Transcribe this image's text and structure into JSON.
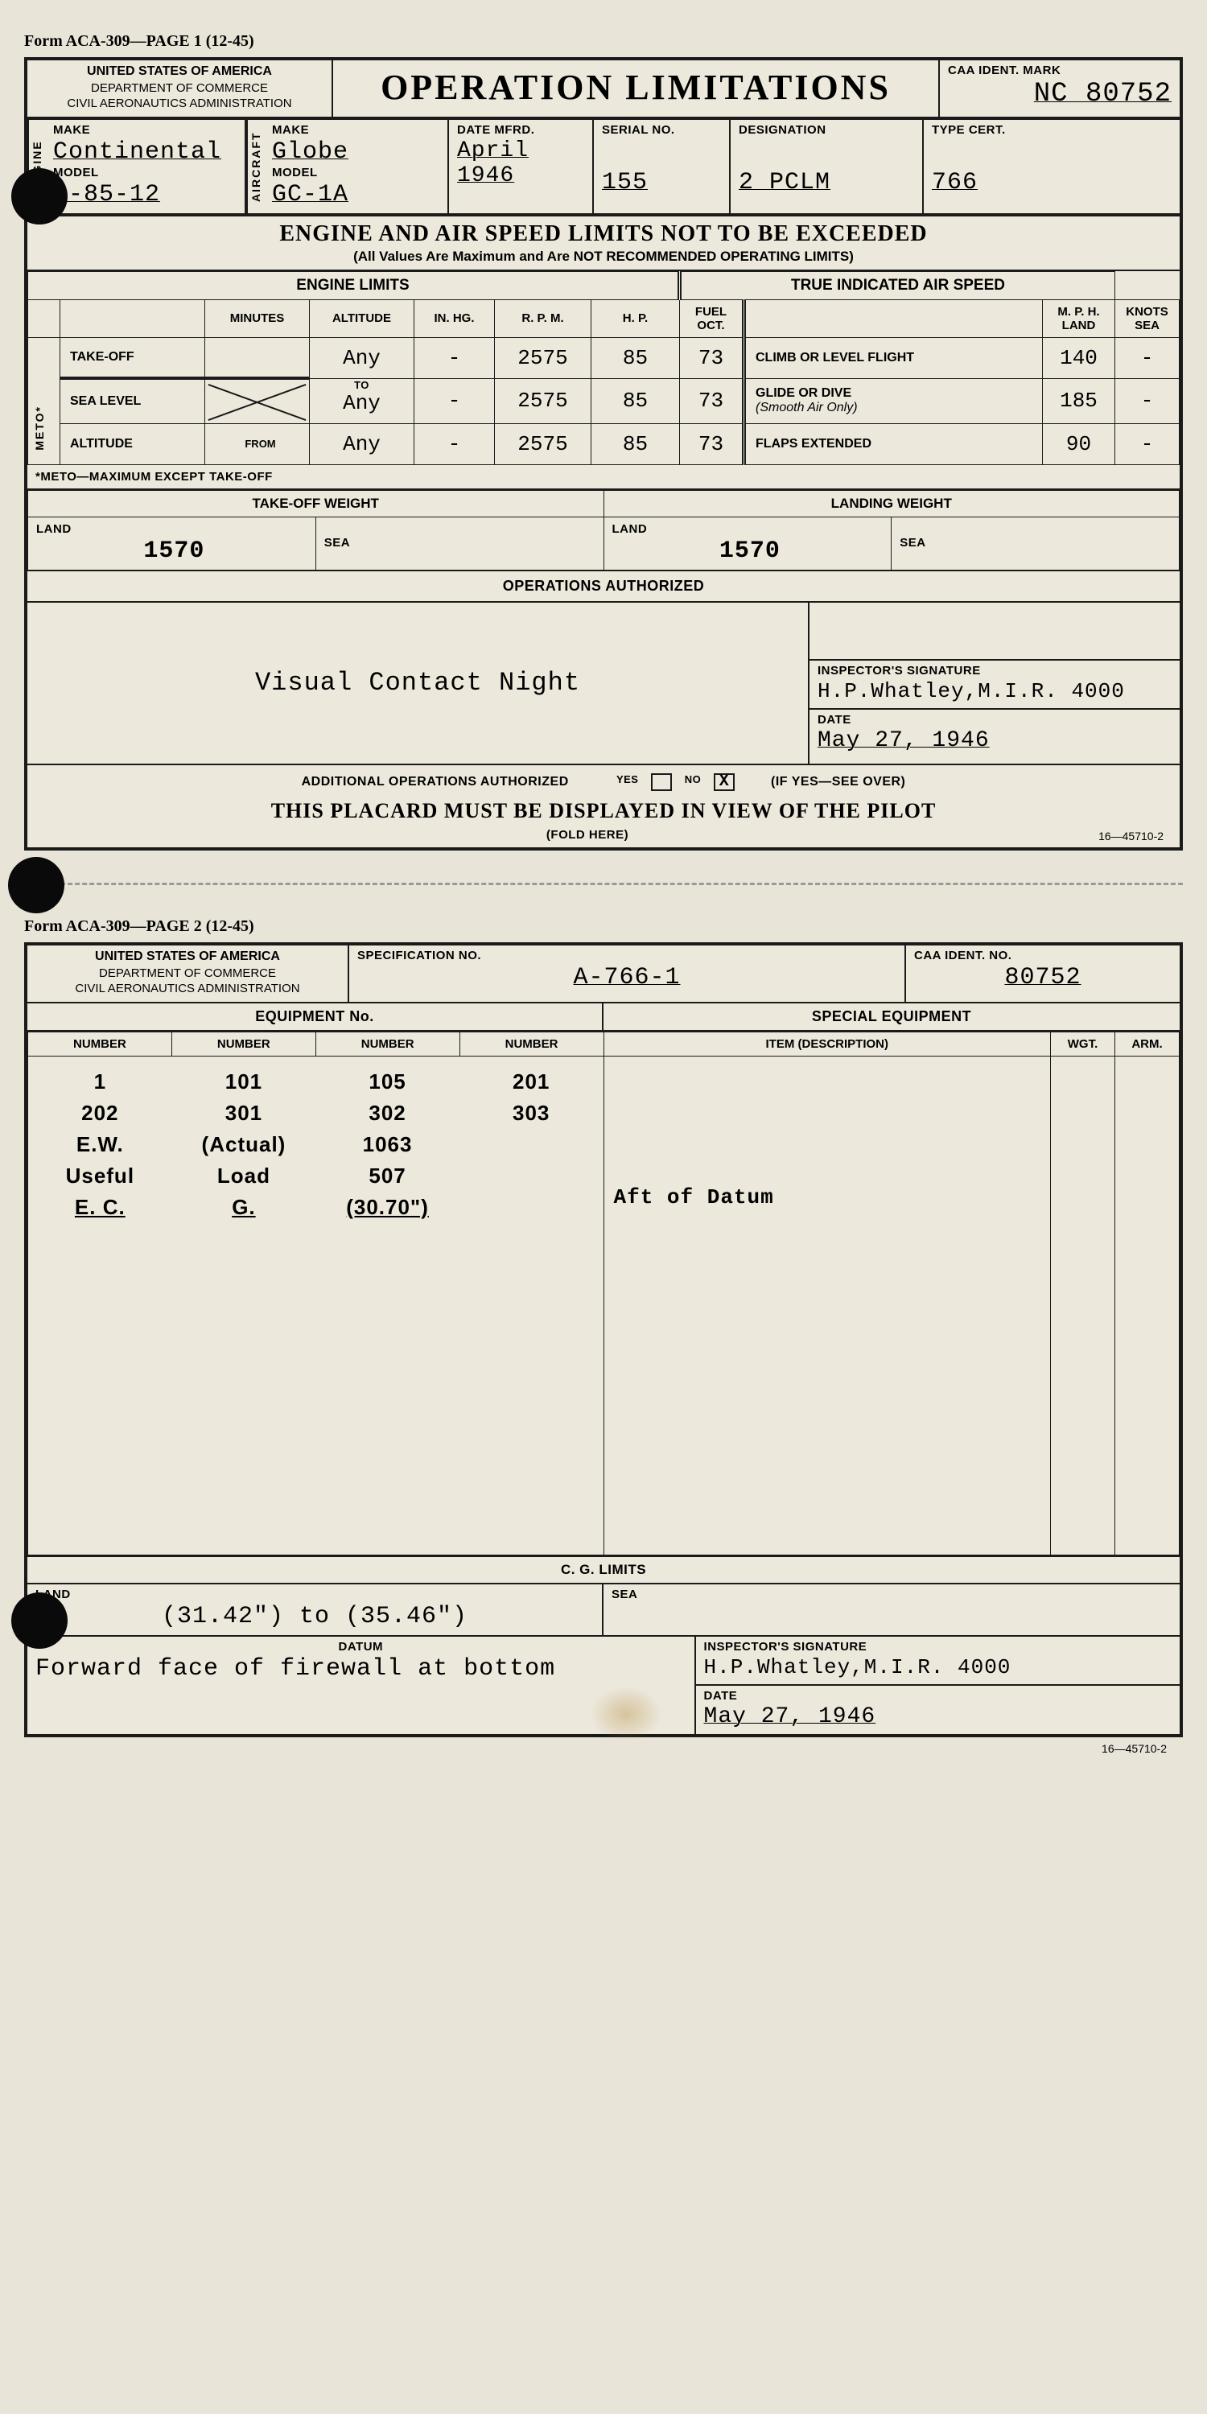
{
  "page1": {
    "form_label": "Form ACA-309—PAGE 1 (12-45)",
    "header": {
      "agency_line1": "UNITED STATES OF AMERICA",
      "agency_line2": "DEPARTMENT OF COMMERCE",
      "agency_line3": "CIVIL AERONAUTICS ADMINISTRATION",
      "title": "OPERATION LIMITATIONS",
      "caa_label": "CAA IDENT. MARK",
      "caa_value": "NC 80752"
    },
    "engine": {
      "vlabel": "ENGINE",
      "make_label": "MAKE",
      "make": "Continental",
      "model_label": "MODEL",
      "model": "C-85-12"
    },
    "aircraft": {
      "vlabel": "AIRCRAFT",
      "make_label": "MAKE",
      "make": "Globe",
      "model_label": "MODEL",
      "model": "GC-1A"
    },
    "date_label": "DATE MFRD.",
    "date": "April 1946",
    "serial_label": "SERIAL NO.",
    "serial": "155",
    "designation_label": "DESIGNATION",
    "designation": "2 PCLM",
    "type_cert_label": "TYPE CERT.",
    "type_cert": "766",
    "limits_title": "ENGINE AND AIR SPEED LIMITS NOT TO BE EXCEEDED",
    "limits_sub": "(All Values Are Maximum and Are NOT RECOMMENDED OPERATING LIMITS)",
    "engine_limits_hdr": "ENGINE LIMITS",
    "airspeed_hdr": "TRUE INDICATED AIR SPEED",
    "cols": {
      "minutes": "MINUTES",
      "altitude": "ALTITUDE",
      "inhg": "IN. HG.",
      "rpm": "R. P. M.",
      "hp": "H. P.",
      "fuel": "FUEL OCT.",
      "mph": "M. P. H. LAND",
      "knots": "KNOTS SEA"
    },
    "rows": {
      "takeoff": {
        "label": "TAKE-OFF",
        "alt": "Any",
        "inhg": "-",
        "rpm": "2575",
        "hp": "85",
        "fuel": "73",
        "air_label": "CLIMB OR LEVEL FLIGHT",
        "mph": "140",
        "knots": "-"
      },
      "sea": {
        "label": "SEA LEVEL",
        "to": "TO",
        "alt": "Any",
        "inhg": "-",
        "rpm": "2575",
        "hp": "85",
        "fuel": "73",
        "air_label": "GLIDE OR DIVE",
        "air_sub": "(Smooth Air Only)",
        "mph": "185",
        "knots": "-"
      },
      "alt": {
        "label": "ALTITUDE",
        "from": "FROM",
        "alt": "Any",
        "inhg": "-",
        "rpm": "2575",
        "hp": "85",
        "fuel": "73",
        "air_label": "FLAPS EXTENDED",
        "mph": "90",
        "knots": "-"
      }
    },
    "meto_vlabel": "METO*",
    "meto_note": "*METO—MAXIMUM EXCEPT TAKE-OFF",
    "weights": {
      "takeoff_hdr": "TAKE-OFF WEIGHT",
      "landing_hdr": "LANDING WEIGHT",
      "land_label": "LAND",
      "sea_label": "SEA",
      "takeoff_land": "1570",
      "takeoff_sea": "",
      "landing_land": "1570",
      "landing_sea": ""
    },
    "ops_auth_hdr": "OPERATIONS AUTHORIZED",
    "ops_auth_text": "Visual Contact Night",
    "inspector_label": "INSPECTOR'S SIGNATURE",
    "inspector": "H.P.Whatley,M.I.R. 4000",
    "date2_label": "DATE",
    "date2": "May 27, 1946",
    "addl_label": "ADDITIONAL OPERATIONS AUTHORIZED",
    "yes": "YES",
    "no": "NO",
    "no_mark": "X",
    "see_over": "(IF YES—SEE OVER)",
    "placard": "THIS PLACARD MUST BE DISPLAYED IN VIEW OF THE PILOT",
    "fold": "(FOLD HERE)",
    "footer_code": "16—45710-2"
  },
  "page2": {
    "form_label": "Form ACA-309—PAGE 2 (12-45)",
    "header": {
      "agency_line1": "UNITED STATES OF AMERICA",
      "agency_line2": "DEPARTMENT OF COMMERCE",
      "agency_line3": "CIVIL AERONAUTICS ADMINISTRATION",
      "spec_label": "SPECIFICATION NO.",
      "spec": "A-766-1",
      "caa_label": "CAA IDENT. NO.",
      "caa": "80752"
    },
    "equip_hdr": "EQUIPMENT No.",
    "special_hdr": "SPECIAL EQUIPMENT",
    "cols": {
      "number": "NUMBER",
      "item": "ITEM (DESCRIPTION)",
      "wgt": "WGT.",
      "arm": "ARM."
    },
    "equipment_rows": [
      [
        "1",
        "101",
        "105",
        "201"
      ],
      [
        "202",
        "301",
        "302",
        "303"
      ],
      [
        "E.W.",
        "(Actual)",
        "1063",
        ""
      ],
      [
        "Useful",
        "Load",
        "507",
        ""
      ],
      [
        "E. C.",
        "G.",
        "(30.70\")",
        "Aft of Datum"
      ]
    ],
    "cg_hdr": "C. G. LIMITS",
    "cg_land_label": "LAND",
    "cg_sea_label": "SEA",
    "cg_land": "(31.42\") to (35.46\")",
    "cg_sea": "",
    "datum_label": "DATUM",
    "datum": "Forward face of firewall at bottom",
    "inspector_label": "INSPECTOR'S SIGNATURE",
    "inspector": "H.P.Whatley,M.I.R. 4000",
    "date_label": "DATE",
    "date": "May 27, 1946",
    "footer_code": "16—45710-2"
  }
}
